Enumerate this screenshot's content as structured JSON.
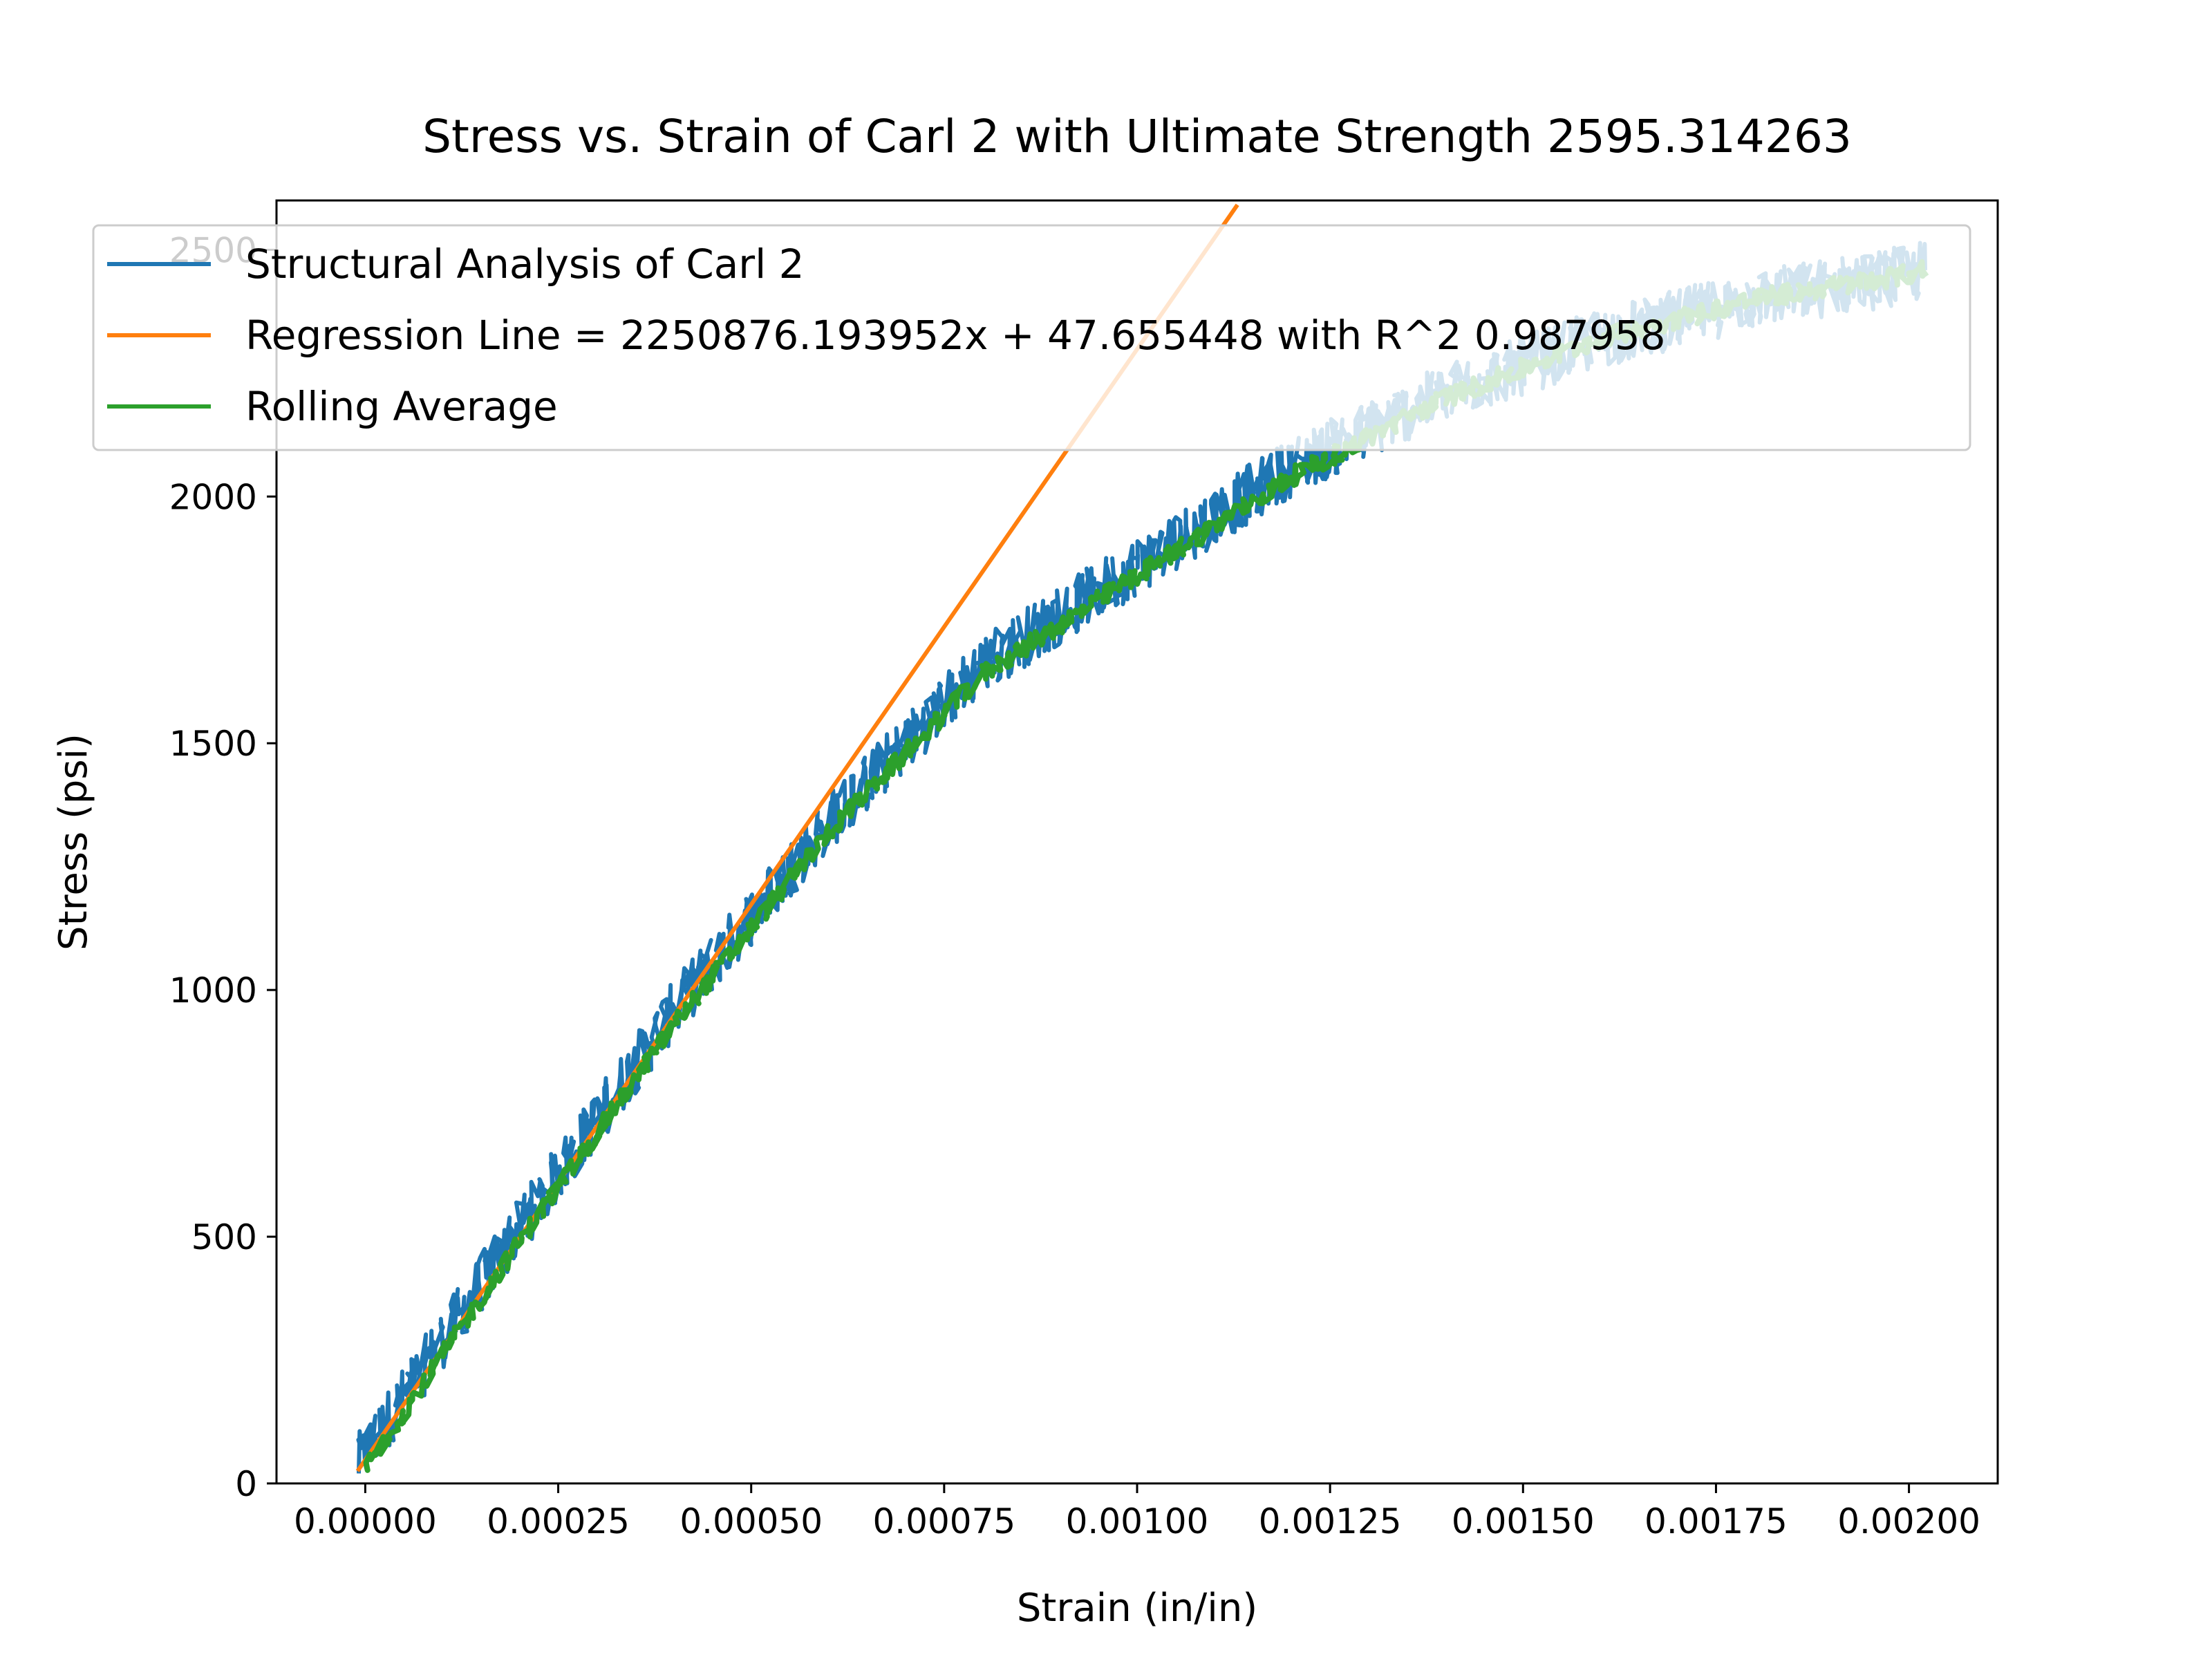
{
  "chart_data": {
    "type": "line",
    "title": "Stress vs. Strain of Carl 2 with Ultimate Strength 2595.314263",
    "xlabel": "Strain (in/in)",
    "ylabel": "Stress (psi)",
    "xlim": [
      -0.000115,
      0.002115
    ],
    "ylim": [
      0,
      2600
    ],
    "xticks": [
      0.0,
      0.00025,
      0.0005,
      0.00075,
      0.001,
      0.00125,
      0.0015,
      0.00175,
      0.002
    ],
    "xtick_labels": [
      "0.00000",
      "0.00025",
      "0.00050",
      "0.00075",
      "0.00100",
      "0.00125",
      "0.00150",
      "0.00175",
      "0.00200"
    ],
    "yticks": [
      0,
      500,
      1000,
      1500,
      2000,
      2500
    ],
    "ytick_labels": [
      "0",
      "500",
      "1000",
      "1500",
      "2000",
      "2500"
    ],
    "grid": false,
    "legend": "upper-left",
    "series": [
      {
        "name": "Structural Analysis of Carl 2",
        "color": "#1f77b4",
        "noise": 60,
        "x": [
          -1e-05,
          0.0002,
          0.0004,
          0.0006,
          0.0008,
          0.001,
          0.0012,
          0.0014,
          0.0016,
          0.0018,
          0.002,
          0.00202
        ],
        "y": [
          40,
          520,
          960,
          1340,
          1660,
          1860,
          2060,
          2210,
          2320,
          2400,
          2450,
          2460
        ]
      },
      {
        "name": "Regression Line = 2250876.193952x + 47.655448 with R^2 0.987958",
        "color": "#ff7f0e",
        "slope": 2250876.193952,
        "intercept": 47.655448,
        "x": [
          -1e-05,
          0.00113
        ]
      },
      {
        "name": "Rolling Average",
        "color": "#2ca02c",
        "noise": 20,
        "x": [
          0.0,
          0.0002,
          0.0004,
          0.0006,
          0.0008,
          0.001,
          0.0012,
          0.0014,
          0.0016,
          0.0018,
          0.002,
          0.00202
        ],
        "y": [
          30,
          490,
          930,
          1320,
          1640,
          1840,
          2040,
          2200,
          2320,
          2400,
          2450,
          2460
        ]
      }
    ]
  }
}
